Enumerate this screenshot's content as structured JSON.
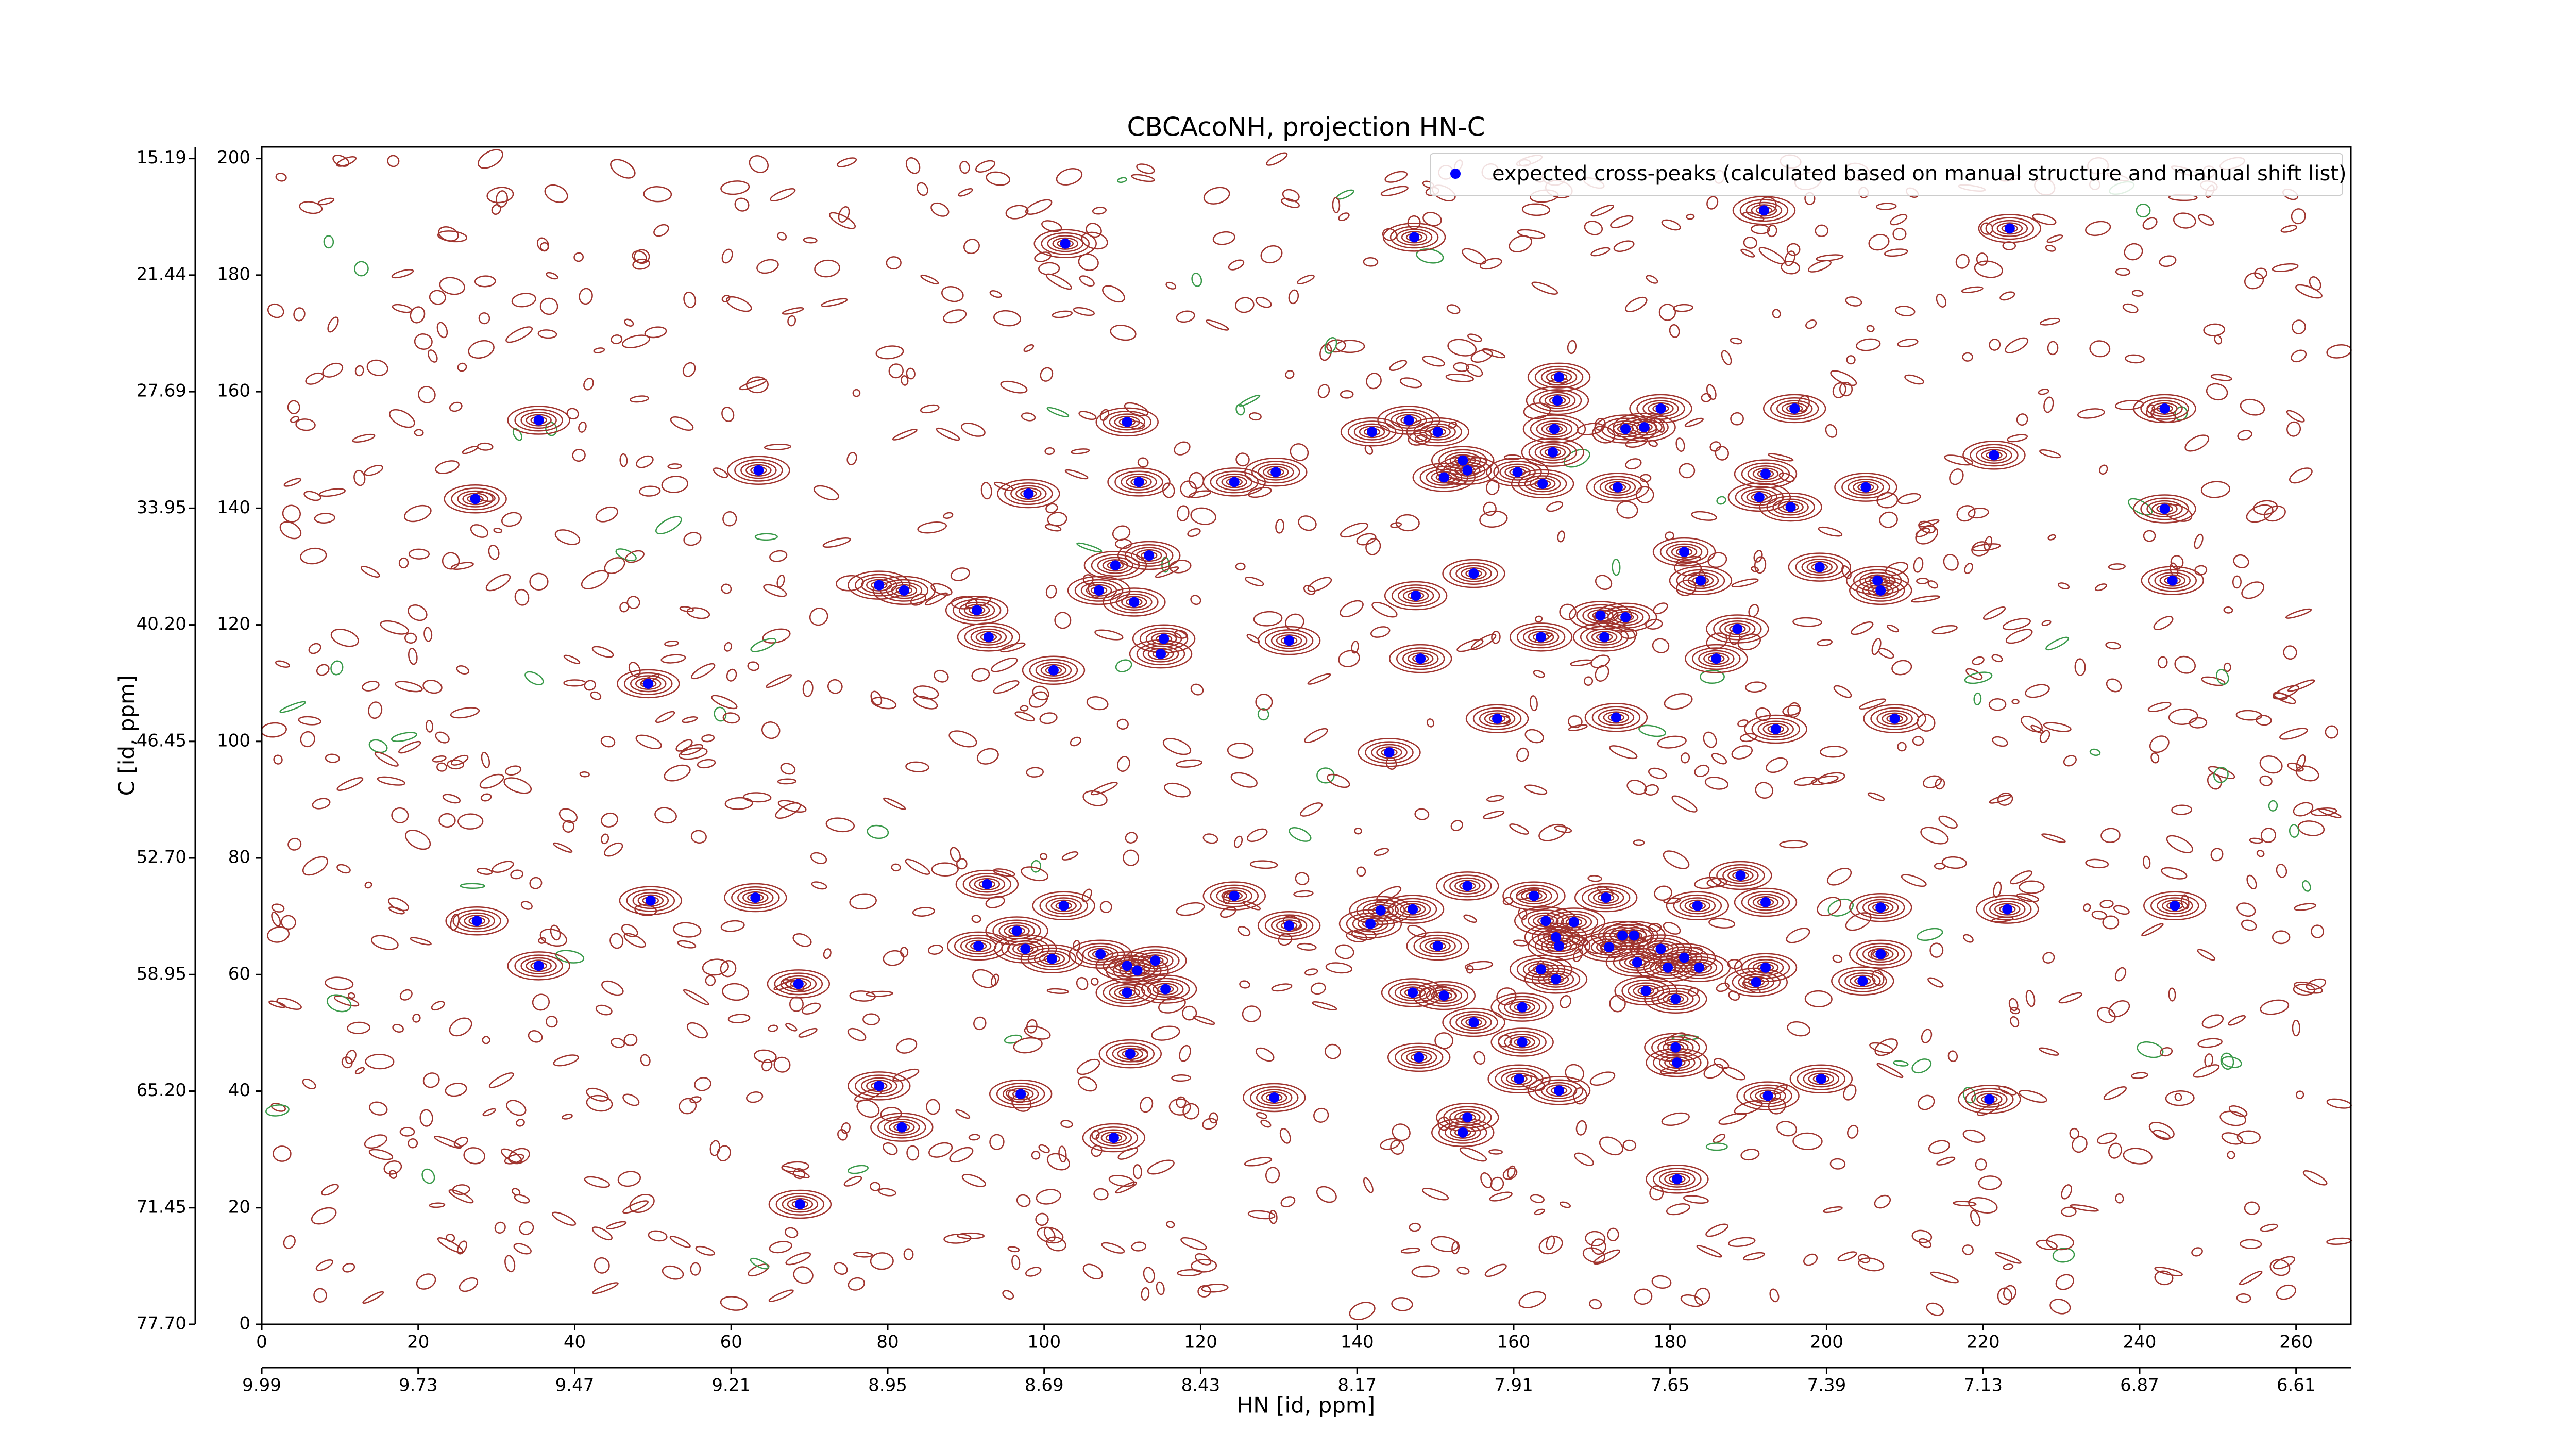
{
  "chart_data": {
    "type": "scatter",
    "title": "CBCAcoNH, projection HN-C",
    "xlabel": "HN [id, ppm]",
    "ylabel": "C [id, ppm]",
    "xlim": [
      0,
      267
    ],
    "ylim": [
      0,
      202
    ],
    "xticks": [
      0,
      20,
      40,
      60,
      80,
      100,
      120,
      140,
      160,
      180,
      200,
      220,
      240,
      260
    ],
    "yticks": [
      0,
      20,
      40,
      60,
      80,
      100,
      120,
      140,
      160,
      180,
      200
    ],
    "hn_ppm_ticks": [
      {
        "value": 0,
        "label": "9.99"
      },
      {
        "value": 20,
        "label": "9.73"
      },
      {
        "value": 40,
        "label": "9.47"
      },
      {
        "value": 60,
        "label": "9.21"
      },
      {
        "value": 80,
        "label": "8.95"
      },
      {
        "value": 100,
        "label": "8.69"
      },
      {
        "value": 120,
        "label": "8.43"
      },
      {
        "value": 140,
        "label": "8.17"
      },
      {
        "value": 160,
        "label": "7.91"
      },
      {
        "value": 180,
        "label": "7.65"
      },
      {
        "value": 200,
        "label": "7.39"
      },
      {
        "value": 220,
        "label": "7.13"
      },
      {
        "value": 240,
        "label": "6.87"
      },
      {
        "value": 260,
        "label": "6.61"
      }
    ],
    "c_ppm_ticks": [
      {
        "value": 0,
        "label": "77.70"
      },
      {
        "value": 20,
        "label": "71.45"
      },
      {
        "value": 40,
        "label": "65.20"
      },
      {
        "value": 60,
        "label": "58.95"
      },
      {
        "value": 80,
        "label": "52.70"
      },
      {
        "value": 100,
        "label": "46.45"
      },
      {
        "value": 120,
        "label": "40.20"
      },
      {
        "value": 140,
        "label": "33.95"
      },
      {
        "value": 160,
        "label": "27.69"
      },
      {
        "value": 180,
        "label": "21.44"
      },
      {
        "value": 200,
        "label": "15.19"
      }
    ],
    "legend_position": "upper right",
    "contour_color": "#a0342e",
    "x": [
      102.7,
      147.3,
      192.0,
      223.4,
      35.4,
      110.6,
      141.9,
      150.3,
      146.6,
      165.8,
      165.6,
      165.2,
      165.0,
      178.8,
      176.7,
      174.3,
      195.9,
      243.2,
      221.4,
      27.3,
      63.5,
      98.0,
      112.1,
      124.3,
      129.6,
      151.1,
      154.1,
      153.5,
      160.5,
      163.7,
      173.3,
      192.2,
      191.4,
      195.4,
      205.0,
      243.2,
      181.8,
      183.9,
      199.1,
      206.5,
      206.9,
      244.2,
      78.9,
      82.1,
      109.1,
      113.4,
      107.0,
      111.5,
      147.5,
      154.9,
      91.4,
      92.9,
      115.3,
      114.9,
      131.3,
      163.5,
      171.1,
      171.6,
      174.3,
      188.6,
      185.9,
      49.4,
      101.2,
      148.1,
      157.9,
      173.1,
      193.5,
      208.7,
      144.1,
      92.7,
      154.1,
      189.0,
      27.5,
      49.7,
      63.1,
      102.5,
      124.3,
      131.3,
      147.1,
      162.6,
      171.8,
      192.2,
      206.9,
      223.1,
      244.5,
      183.5,
      181.8,
      183.7,
      91.6,
      96.5,
      97.6,
      101.0,
      107.2,
      110.6,
      111.9,
      114.2,
      110.6,
      115.5,
      141.7,
      143.0,
      150.3,
      164.1,
      165.4,
      165.8,
      167.7,
      172.2,
      173.9,
      175.4,
      175.8,
      178.8,
      179.7,
      192.2,
      191.0,
      204.6,
      206.9,
      163.5,
      165.4,
      147.1,
      151.1,
      154.9,
      161.1,
      176.9,
      180.7,
      180.7,
      180.9,
      35.4,
      68.6,
      161.1,
      147.9,
      111.0,
      78.9,
      81.8,
      97.0,
      129.4,
      160.7,
      165.8,
      192.5,
      199.3,
      220.8,
      154.1,
      153.5,
      108.9,
      68.8,
      180.9
    ],
    "series": [
      {
        "name": "expected cross-peaks (calculated based on manual structure and manual shift list)",
        "color": "#0000ff",
        "values": [
          185.4,
          186.5,
          191.1,
          188.0,
          155.1,
          154.8,
          153.1,
          153.1,
          155.1,
          162.5,
          158.5,
          153.6,
          149.6,
          157.1,
          153.9,
          153.6,
          157.1,
          157.1,
          149.1,
          141.6,
          146.5,
          142.5,
          144.5,
          144.5,
          146.2,
          145.3,
          146.5,
          148.2,
          146.2,
          144.2,
          143.6,
          145.9,
          141.9,
          140.2,
          143.6,
          139.9,
          132.5,
          127.6,
          129.9,
          127.6,
          125.9,
          127.6,
          126.8,
          125.9,
          130.2,
          131.9,
          125.9,
          123.9,
          125.0,
          128.8,
          122.5,
          117.9,
          117.6,
          115.0,
          117.3,
          117.9,
          121.6,
          117.9,
          121.3,
          119.3,
          114.2,
          109.9,
          112.2,
          114.2,
          103.9,
          104.1,
          102.1,
          103.9,
          98.1,
          75.5,
          75.2,
          77.0,
          69.2,
          72.7,
          73.2,
          71.8,
          73.5,
          68.4,
          71.2,
          73.5,
          73.2,
          72.4,
          71.5,
          71.2,
          71.8,
          71.8,
          62.9,
          61.2,
          64.9,
          67.5,
          64.4,
          62.7,
          63.5,
          61.5,
          60.7,
          62.4,
          56.9,
          57.5,
          68.7,
          71.0,
          64.9,
          69.2,
          66.4,
          64.9,
          69.0,
          64.7,
          66.7,
          66.7,
          62.1,
          64.4,
          61.2,
          61.2,
          58.7,
          58.9,
          63.5,
          60.9,
          59.2,
          56.9,
          56.4,
          51.8,
          54.4,
          57.2,
          55.8,
          47.5,
          44.9,
          61.5,
          58.4,
          48.4,
          45.8,
          46.4,
          40.9,
          33.8,
          39.5,
          38.9,
          42.1,
          40.1,
          39.2,
          42.1,
          38.6,
          35.5,
          32.9,
          32.0,
          20.6,
          24.9
        ]
      }
    ]
  }
}
